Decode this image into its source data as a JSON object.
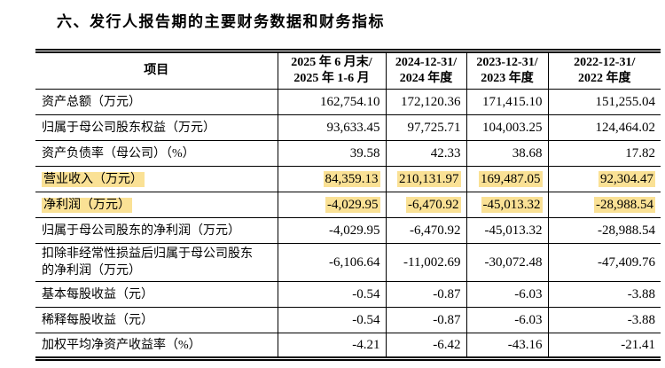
{
  "page": {
    "title": "六、发行人报告期的主要财务数据和财务指标"
  },
  "colors": {
    "highlight": "#FAE195",
    "text": "#000000",
    "border": "#000000",
    "background": "#FFFFFF"
  },
  "table": {
    "header": {
      "item_label": "项目",
      "periods": [
        {
          "line1": "2025 年 6 月末/",
          "line2": "2025 年 1-6 月"
        },
        {
          "line1": "2024-12-31/",
          "line2": "2024 年度"
        },
        {
          "line1": "2023-12-31/",
          "line2": "2023 年度"
        },
        {
          "line1": "2022-12-31/",
          "line2": "2022 年度"
        }
      ]
    },
    "rows": [
      {
        "label": "资产总额（万元）",
        "values": [
          "162,754.10",
          "172,120.36",
          "171,415.10",
          "151,255.04"
        ],
        "highlight": false
      },
      {
        "label": "归属于母公司股东权益（万元）",
        "values": [
          "93,633.45",
          "97,725.71",
          "104,003.25",
          "124,464.02"
        ],
        "highlight": false
      },
      {
        "label": "资产负债率（母公司）（%）",
        "values": [
          "39.58",
          "42.33",
          "38.68",
          "17.82"
        ],
        "highlight": false
      },
      {
        "label": "营业收入（万元）",
        "values": [
          "84,359.13",
          "210,131.97",
          "169,487.05",
          "92,304.47"
        ],
        "highlight": true
      },
      {
        "label": "净利润（万元）",
        "values": [
          "-4,029.95",
          "-6,470.92",
          "-45,013.32",
          "-28,988.54"
        ],
        "highlight": true
      },
      {
        "label": "归属于母公司股东的净利润（万元）",
        "values": [
          "-4,029.95",
          "-6,470.92",
          "-45,013.32",
          "-28,988.54"
        ],
        "highlight": false
      },
      {
        "label": "扣除非经常性损益后归属于母公司股东\n的净利润（万元）",
        "values": [
          "-6,106.64",
          "-11,002.69",
          "-30,072.48",
          "-47,409.76"
        ],
        "highlight": false
      },
      {
        "label": "基本每股收益（元）",
        "values": [
          "-0.54",
          "-0.87",
          "-6.03",
          "-3.88"
        ],
        "highlight": false
      },
      {
        "label": "稀释每股收益（元）",
        "values": [
          "-0.54",
          "-0.87",
          "-6.03",
          "-3.88"
        ],
        "highlight": false
      },
      {
        "label": "加权平均净资产收益率（%）",
        "values": [
          "-4.21",
          "-6.42",
          "-43.16",
          "-21.41"
        ],
        "highlight": false
      }
    ]
  }
}
